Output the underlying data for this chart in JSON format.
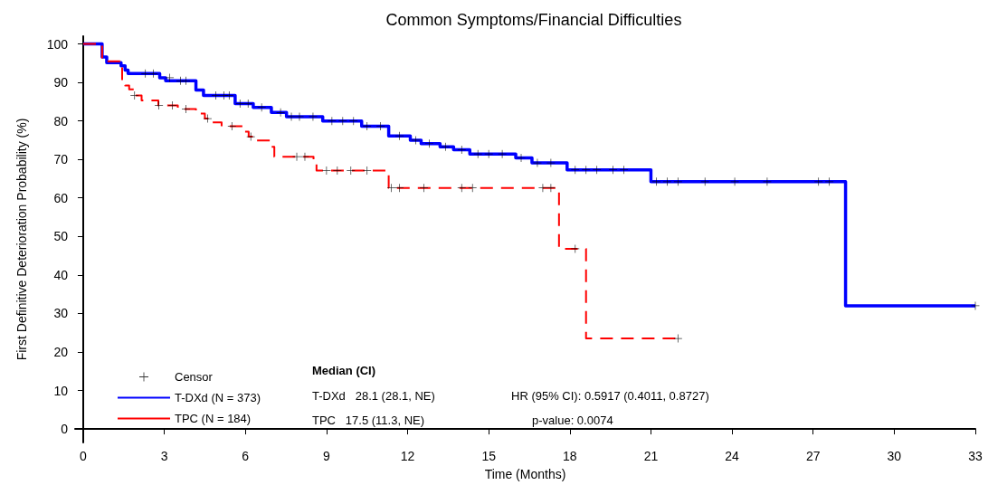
{
  "chart_data": {
    "type": "step",
    "title": "Common Symptoms/Financial Difficulties",
    "xlabel": "Time (Months)",
    "ylabel": "First Definitive Deterioration Probability (%)",
    "xlim": [
      -0.3,
      33
    ],
    "xticks": [
      0,
      3,
      6,
      9,
      12,
      15,
      18,
      21,
      24,
      27,
      30,
      33
    ],
    "ylim": [
      -3.5,
      102
    ],
    "yticks": [
      0,
      10,
      20,
      30,
      40,
      50,
      60,
      70,
      80,
      90,
      100
    ],
    "grid": false,
    "legend": "bottom left",
    "annotations": [
      "Median (CI)",
      "T-DXd   28.1 (28.1, NE)",
      "TPC   17.5 (11.3, NE)",
      "HR (95% CI): 0.5917 (0.4011, 0.8727)",
      "p-value: 0.0074"
    ],
    "series": [
      {
        "name": "Censor",
        "type": "scatter",
        "marker": "cross",
        "color": "#000000",
        "x": [
          2.3,
          2.6,
          3.2,
          3.6,
          3.8,
          4.9,
          5.2,
          5.4,
          5.8,
          6.1,
          6.6,
          7.3,
          7.7,
          8.0,
          8.5,
          9.2,
          9.6,
          10.0,
          10.5,
          11.0,
          11.7,
          12.3,
          12.8,
          13.4,
          14.0,
          14.6,
          15.0,
          15.5,
          16.2,
          16.8,
          17.3,
          18.2,
          18.6,
          19.0,
          19.6,
          20.0,
          21.2,
          21.6,
          22.0,
          23.0,
          24.1,
          25.3,
          27.2,
          27.6,
          33.0,
          1.9,
          2.8,
          3.3,
          3.8,
          4.6,
          5.5,
          6.2,
          7.9,
          8.2,
          9.0,
          9.4,
          9.9,
          10.5,
          11.4,
          11.7,
          12.6,
          14.0,
          14.4,
          17.0,
          17.3,
          18.2,
          22.0
        ],
        "values": [
          92.3,
          92.3,
          91.2,
          90.4,
          90.4,
          86.6,
          86.6,
          86.6,
          84.5,
          84.5,
          83.5,
          82.2,
          81.1,
          81.1,
          81.1,
          80.0,
          80.0,
          80.0,
          78.6,
          78.6,
          76.1,
          75.0,
          74.1,
          73.3,
          72.5,
          71.4,
          71.4,
          71.4,
          70.4,
          69.1,
          69.1,
          67.3,
          67.3,
          67.3,
          67.3,
          67.3,
          64.2,
          64.2,
          64.2,
          64.2,
          64.2,
          64.2,
          64.2,
          64.2,
          32,
          86.6,
          84.0,
          84.0,
          83.1,
          80.6,
          78.6,
          75.9,
          70.7,
          70.7,
          67.1,
          67.1,
          67.1,
          67.1,
          62.6,
          62.6,
          62.6,
          62.6,
          62.6,
          62.6,
          62.6,
          46.8,
          23.5
        ]
      },
      {
        "name": "T-DXd (N = 373)",
        "color": "#0000ff",
        "line_style": "solid",
        "x": [
          0,
          0.7,
          0.87,
          1.4,
          1.55,
          1.66,
          2.83,
          3.05,
          4.17,
          4.45,
          5.62,
          6.29,
          6.96,
          7.52,
          8.86,
          10.3,
          11.3,
          12.1,
          12.5,
          13.2,
          13.7,
          14.3,
          16.0,
          16.6,
          17.9,
          21.0,
          28.2,
          33
        ],
        "values": [
          100,
          96.6,
          95.1,
          94.3,
          93.2,
          92.3,
          91.2,
          90.4,
          88.0,
          86.6,
          84.5,
          83.5,
          82.2,
          81.1,
          80.0,
          78.6,
          76.1,
          75.0,
          74.1,
          73.3,
          72.5,
          71.4,
          70.4,
          69.1,
          67.3,
          64.2,
          32,
          32
        ]
      },
      {
        "name": "TPC (N = 184)",
        "color": "#ff0000",
        "line_style": "dashed",
        "x": [
          0,
          0.7,
          1.44,
          1.55,
          1.7,
          1.87,
          2.16,
          2.78,
          3.5,
          4.17,
          4.5,
          4.67,
          5.12,
          5.96,
          6.12,
          6.3,
          6.96,
          7.07,
          8.52,
          8.63,
          11.3,
          17.6,
          18.6,
          22.0
        ],
        "values": [
          100,
          95.5,
          90.4,
          89.2,
          88.2,
          86.6,
          85.3,
          84.0,
          83.1,
          81.9,
          80.6,
          79.6,
          78.6,
          77.2,
          75.9,
          74.9,
          73.3,
          70.7,
          68.9,
          67.1,
          62.6,
          46.8,
          23.5,
          23.5
        ]
      }
    ]
  }
}
